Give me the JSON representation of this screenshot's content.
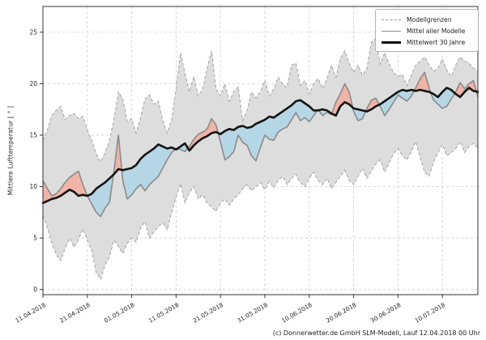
{
  "chart_data": {
    "type": "line",
    "title": "",
    "ylabel": "Mittlere Lufttemperatur [ ° ]",
    "footer": "(c) Donnerwetter.de GmbH SLM-Modell, Lauf 12.04.2018 00 Uhr",
    "start_date": "11.04.2018",
    "end_date": "18.07.2018",
    "grid": true,
    "legend_position": "top-right",
    "ylim": [
      -0.5,
      27.5
    ],
    "y_ticks": [
      0,
      5,
      10,
      15,
      20,
      25
    ],
    "x_ticks": [
      {
        "label": "11.04.2018",
        "day": 0
      },
      {
        "label": "21.04.2018",
        "day": 10
      },
      {
        "label": "01.05.2018",
        "day": 20
      },
      {
        "label": "11.05.2018",
        "day": 30
      },
      {
        "label": "21.05.2018",
        "day": 40
      },
      {
        "label": "31.05.2018",
        "day": 50
      },
      {
        "label": "10.06.2018",
        "day": 60
      },
      {
        "label": "20.06.2018",
        "day": 70
      },
      {
        "label": "30.06.2018",
        "day": 80
      },
      {
        "label": "10.07.2018",
        "day": 90
      }
    ],
    "legend": [
      {
        "label": "Modellgrenzen",
        "style": "dashed-gray"
      },
      {
        "label": "Mittel aller Modelle",
        "style": "solid-gray"
      },
      {
        "label": "Mittelwert 30 Jahre",
        "style": "solid-black"
      }
    ],
    "series": {
      "upper_bound": {
        "name": "Modellgrenzen (oben)",
        "values": [
          14.5,
          15.5,
          16.9,
          17.4,
          17.8,
          16.5,
          16.9,
          17.1,
          16.6,
          16.8,
          15.5,
          14.5,
          13.2,
          12.4,
          13.3,
          14.5,
          16.5,
          19.2,
          18.5,
          16.3,
          16.6,
          15.2,
          16.7,
          18.5,
          18.9,
          18.0,
          18.3,
          16.4,
          15.2,
          16.5,
          19.5,
          23.0,
          21.0,
          19.2,
          20.7,
          18.8,
          19.5,
          21.5,
          23.2,
          19.5,
          18.8,
          20.0,
          18.3,
          19.2,
          19.7,
          16.4,
          17.4,
          19.2,
          18.6,
          19.2,
          20.3,
          18.8,
          19.5,
          20.6,
          20.0,
          19.6,
          21.8,
          22.0,
          19.8,
          20.3,
          19.0,
          20.0,
          20.5,
          19.5,
          20.5,
          21.8,
          20.6,
          22.4,
          23.2,
          22.0,
          21.1,
          21.8,
          20.8,
          21.5,
          24.0,
          24.4,
          21.9,
          23.0,
          21.9,
          21.1,
          20.7,
          20.9,
          19.8,
          20.8,
          21.8,
          22.2,
          22.6,
          21.8,
          21.2,
          21.5,
          22.4,
          21.3,
          20.7,
          21.8,
          22.6,
          22.2,
          22.0,
          21.5,
          21.2
        ]
      },
      "lower_bound": {
        "name": "Modellgrenzen (unten)",
        "values": [
          7.2,
          6.0,
          4.5,
          3.4,
          2.8,
          4.0,
          5.0,
          4.1,
          4.8,
          5.9,
          4.8,
          3.8,
          1.6,
          1.0,
          2.4,
          3.2,
          4.8,
          4.2,
          3.5,
          4.5,
          5.0,
          4.6,
          6.0,
          6.6,
          5.0,
          5.6,
          6.1,
          6.5,
          5.8,
          7.5,
          9.0,
          10.3,
          8.4,
          9.4,
          10.0,
          8.8,
          9.2,
          8.4,
          8.0,
          7.6,
          8.4,
          8.8,
          8.2,
          8.8,
          9.2,
          9.8,
          10.2,
          9.6,
          10.0,
          10.4,
          9.7,
          10.5,
          9.9,
          10.6,
          11.0,
          10.2,
          10.8,
          11.2,
          10.4,
          10.0,
          10.8,
          11.4,
          10.6,
          10.2,
          10.8,
          9.8,
          10.4,
          11.0,
          11.6,
          10.6,
          10.2,
          11.0,
          11.8,
          10.8,
          11.5,
          12.2,
          12.6,
          11.4,
          12.3,
          13.2,
          13.7,
          13.0,
          12.6,
          13.4,
          14.4,
          12.8,
          11.4,
          11.0,
          12.4,
          13.3,
          14.1,
          13.0,
          13.3,
          13.7,
          14.4,
          13.3,
          13.9,
          14.2,
          13.7
        ]
      },
      "model_mean": {
        "name": "Mittel aller Modelle",
        "values": [
          10.6,
          9.8,
          9.1,
          9.3,
          9.8,
          10.4,
          10.9,
          11.2,
          11.5,
          10.2,
          9.1,
          8.3,
          7.5,
          7.1,
          7.9,
          8.5,
          11.5,
          15.0,
          10.6,
          8.8,
          9.2,
          9.8,
          10.2,
          9.6,
          10.2,
          10.6,
          11.0,
          11.8,
          12.6,
          13.3,
          13.7,
          13.6,
          13.4,
          13.9,
          14.6,
          15.1,
          15.3,
          15.6,
          16.6,
          16.0,
          14.3,
          12.6,
          12.9,
          13.4,
          15.0,
          14.3,
          14.0,
          13.0,
          12.5,
          13.8,
          15.0,
          14.6,
          14.5,
          15.3,
          15.6,
          15.8,
          16.5,
          17.2,
          16.4,
          16.7,
          16.3,
          16.9,
          17.5,
          16.9,
          17.2,
          17.0,
          18.2,
          19.0,
          20.0,
          19.2,
          17.3,
          16.4,
          16.6,
          17.6,
          18.4,
          18.6,
          17.8,
          16.9,
          17.5,
          18.2,
          18.9,
          18.6,
          18.3,
          18.8,
          19.6,
          20.5,
          21.1,
          19.6,
          18.4,
          18.0,
          17.6,
          17.8,
          18.5,
          19.2,
          20.1,
          19.5,
          20.0,
          20.3,
          18.7
        ]
      },
      "mean_30y": {
        "name": "Mittelwert 30 Jahre",
        "values": [
          8.4,
          8.6,
          8.8,
          8.9,
          9.1,
          9.4,
          9.7,
          9.5,
          9.1,
          9.2,
          9.1,
          9.3,
          9.8,
          10.1,
          10.4,
          10.8,
          11.2,
          11.7,
          11.6,
          11.7,
          11.8,
          12.1,
          12.7,
          13.1,
          13.4,
          13.7,
          14.1,
          13.9,
          13.7,
          13.8,
          13.6,
          13.9,
          14.2,
          13.5,
          14.0,
          14.4,
          14.7,
          14.9,
          15.2,
          15.3,
          15.1,
          15.4,
          15.6,
          15.5,
          15.8,
          15.9,
          15.7,
          15.8,
          16.1,
          16.3,
          16.5,
          16.8,
          16.7,
          17.0,
          17.3,
          17.6,
          17.9,
          18.3,
          18.4,
          18.1,
          17.8,
          17.4,
          17.4,
          17.5,
          17.4,
          17.1,
          16.9,
          17.8,
          18.2,
          18.0,
          17.6,
          17.5,
          17.4,
          17.3,
          17.5,
          17.8,
          18.0,
          18.3,
          18.6,
          18.9,
          19.2,
          19.4,
          19.3,
          19.4,
          19.3,
          19.4,
          19.3,
          19.2,
          19.0,
          18.7,
          19.2,
          19.6,
          19.4,
          19.0,
          18.7,
          19.2,
          19.6,
          19.3,
          19.2
        ]
      }
    },
    "colors": {
      "band": "#dddddd",
      "band_edge": "#a3a3a3",
      "model_mean": "#8a8a8a",
      "mean_30y": "#141414",
      "above_fill": "#f1b3a6",
      "below_fill": "#b5d6e6",
      "grid": "#cccccc",
      "frame": "#333333",
      "text": "#222222"
    }
  }
}
